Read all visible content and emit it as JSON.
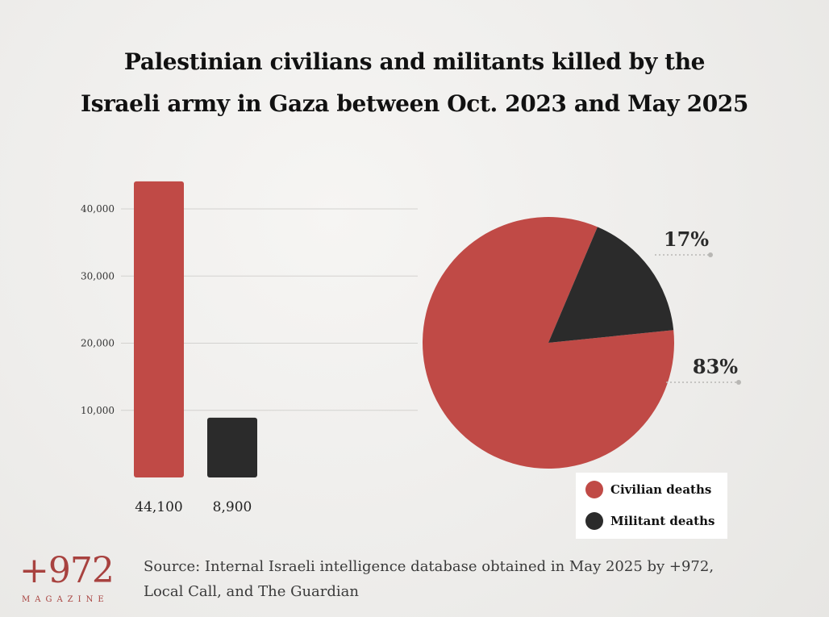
{
  "header": {
    "title_line1": "Palestinian civilians and militants killed by the",
    "title_line2": "Israeli army in Gaza between Oct. 2023 and May 2025"
  },
  "colors": {
    "civilian": "#c04a46",
    "militant": "#2b2b2b",
    "background": "#efeeec",
    "brand": "#a8423f"
  },
  "chart_data": [
    {
      "type": "bar",
      "categories": [
        "Civilian deaths",
        "Militant deaths"
      ],
      "values": [
        44100,
        8900
      ],
      "value_labels": [
        "44,100",
        "8,900"
      ],
      "yticks": [
        10000,
        20000,
        30000,
        40000
      ],
      "ytick_labels": [
        "10,000",
        "20,000",
        "30,000",
        "40,000"
      ],
      "ylim": [
        0,
        45000
      ],
      "grid": true,
      "xlabel": "",
      "ylabel": ""
    },
    {
      "type": "pie",
      "categories": [
        "Civilian deaths",
        "Militant deaths"
      ],
      "values": [
        83,
        17
      ],
      "value_labels": [
        "83%",
        "17%"
      ]
    }
  ],
  "legend": {
    "items": [
      {
        "label": "Civilian deaths",
        "color": "#c04a46"
      },
      {
        "label": "Militant deaths",
        "color": "#2b2b2b"
      }
    ]
  },
  "footer": {
    "logo_main": "+972",
    "logo_sub": "MAGAZINE",
    "source_line1": "Source: Internal Israeli intelligence database obtained in May 2025 by +972,",
    "source_line2": "Local Call, and The Guardian"
  }
}
